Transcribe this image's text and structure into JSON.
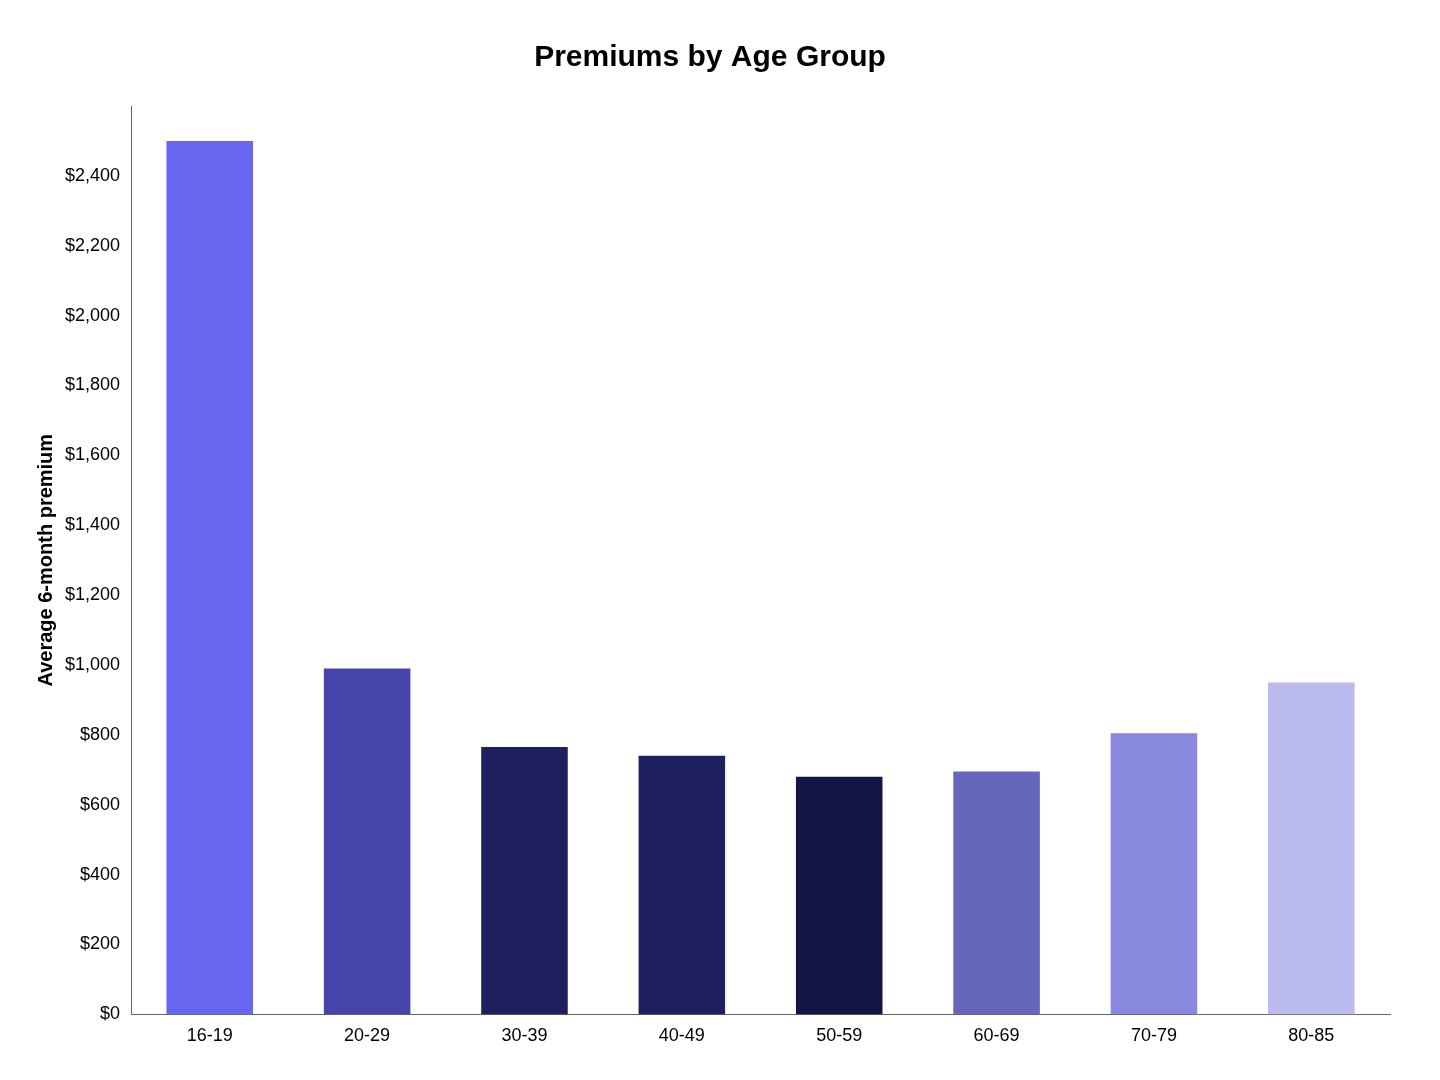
{
  "chart_data": {
    "type": "bar",
    "title": "Premiums by Age Group",
    "categories": [
      "16-19",
      "20-29",
      "30-39",
      "40-49",
      "50-59",
      "60-69",
      "70-79",
      "80-85"
    ],
    "values": [
      2500,
      990,
      765,
      740,
      680,
      695,
      805,
      950
    ],
    "colors": [
      "#6666ee",
      "#4444aa",
      "#1e2060",
      "#1e2060",
      "#151545",
      "#6666bb",
      "#8888dd",
      "#bbbbee"
    ],
    "ylabel": "Average 6-month premium",
    "ylim": [
      0,
      2600
    ],
    "yticks": [
      {
        "value": 0,
        "label": "$0"
      },
      {
        "value": 200,
        "label": "$200"
      },
      {
        "value": 400,
        "label": "$400"
      },
      {
        "value": 600,
        "label": "$600"
      },
      {
        "value": 800,
        "label": "$800"
      },
      {
        "value": 1000,
        "label": "$1,000"
      },
      {
        "value": 1200,
        "label": "$1,200"
      },
      {
        "value": 1400,
        "label": "$1,400"
      },
      {
        "value": 1600,
        "label": "$1,600"
      },
      {
        "value": 1800,
        "label": "$1,800"
      },
      {
        "value": 2000,
        "label": "$2,000"
      },
      {
        "value": 2200,
        "label": "$2,200"
      },
      {
        "value": 2400,
        "label": "$2,400"
      }
    ],
    "grid": false
  }
}
